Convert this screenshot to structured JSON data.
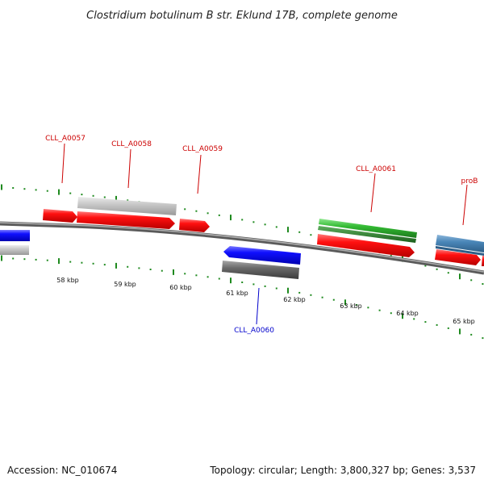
{
  "title": "Clostridium botulinum B str. Eklund 17B, complete genome",
  "footer": {
    "accession": "Accession: NC_010674",
    "summary": "Topology: circular; Length: 3,800,327 bp; Genes: 3,537"
  },
  "colors": {
    "backbone": "#808080",
    "tick": "#1f8a1f",
    "forward_gene": "#ff0000",
    "reverse_gene": "#0000ff",
    "forward_label": "#cc0000",
    "reverse_label": "#0000cc",
    "rna_gene": "#33bb33",
    "other_gene": "#4a86b8",
    "feature_gray": "#c0c0c0",
    "feature_dark_gray": "#666666"
  },
  "scale": {
    "unit": "kbp",
    "tick_labels": [
      "58 kbp",
      "59 kbp",
      "60 kbp",
      "61 kbp",
      "62 kbp",
      "63 kbp",
      "64 kbp",
      "65 kbp"
    ]
  },
  "gene_labels": [
    {
      "name": "CLL_A0057",
      "strand": "forward"
    },
    {
      "name": "CLL_A0058",
      "strand": "forward"
    },
    {
      "name": "CLL_A0059",
      "strand": "forward"
    },
    {
      "name": "CLL_A0060",
      "strand": "reverse"
    },
    {
      "name": "CLL_A0061",
      "strand": "forward"
    },
    {
      "name": "proB",
      "strand": "forward"
    }
  ]
}
